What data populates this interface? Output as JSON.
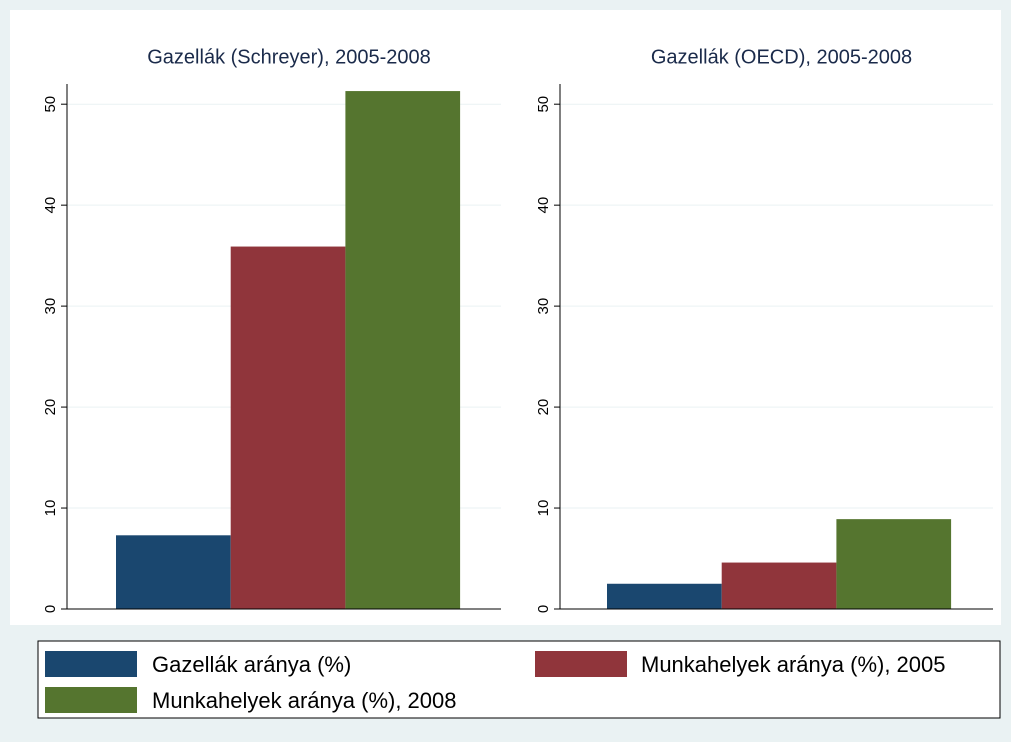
{
  "legend": {
    "series": [
      {
        "name": "Gazellák aránya (%)",
        "color": "#1a476f"
      },
      {
        "name": "Munkahelyek aránya (%), 2005",
        "color": "#90353b"
      },
      {
        "name": "Munkahelyek aránya (%), 2008",
        "color": "#55752f"
      }
    ]
  },
  "chart_data": [
    {
      "type": "bar",
      "title": "Gazellák (Schreyer), 2005-2008",
      "values": [
        7.3,
        35.9,
        51.3
      ],
      "ylim": [
        0,
        52
      ],
      "yticks": [
        0,
        10,
        20,
        30,
        40,
        50
      ],
      "grid": true
    },
    {
      "type": "bar",
      "title": "Gazellák (OECD), 2005-2008",
      "values": [
        2.5,
        4.6,
        8.9
      ],
      "ylim": [
        0,
        52
      ],
      "yticks": [
        0,
        10,
        20,
        30,
        40,
        50
      ],
      "grid": true
    }
  ]
}
